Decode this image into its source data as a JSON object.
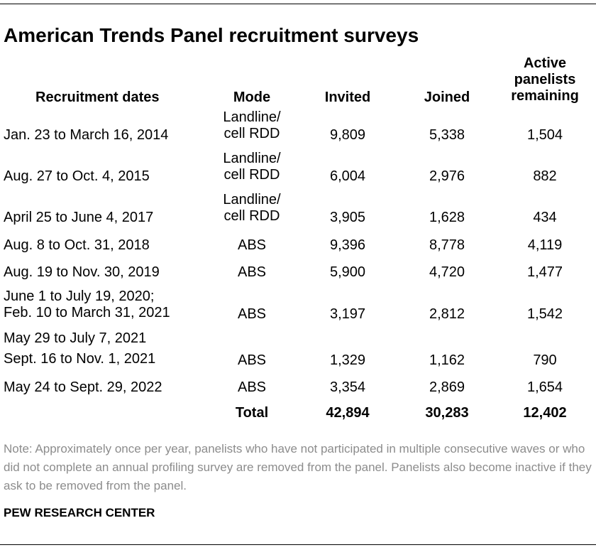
{
  "title": "American Trends Panel recruitment surveys",
  "headers": {
    "dates": "Recruitment dates",
    "mode": "Mode",
    "invited": "Invited",
    "joined": "Joined",
    "active": [
      "Active",
      "panelists",
      "remaining"
    ]
  },
  "rows": [
    {
      "dates": [
        "Jan. 23 to March 16, 2014"
      ],
      "mode": [
        "Landline/",
        "cell RDD"
      ],
      "invited": "9,809",
      "joined": "5,338",
      "active": "1,504"
    },
    {
      "dates": [
        "Aug. 27 to Oct. 4, 2015"
      ],
      "mode": [
        "Landline/",
        "cell RDD"
      ],
      "invited": "6,004",
      "joined": "2,976",
      "active": "882"
    },
    {
      "dates": [
        "April 25 to June 4, 2017"
      ],
      "mode": [
        "Landline/",
        "cell RDD"
      ],
      "invited": "3,905",
      "joined": "1,628",
      "active": "434"
    },
    {
      "dates": [
        "Aug. 8 to Oct. 31, 2018"
      ],
      "mode": [
        "ABS"
      ],
      "invited": "9,396",
      "joined": "8,778",
      "active": "4,119"
    },
    {
      "dates": [
        "Aug. 19 to Nov. 30, 2019"
      ],
      "mode": [
        "ABS"
      ],
      "invited": "5,900",
      "joined": "4,720",
      "active": "1,477"
    },
    {
      "dates": [
        "June 1 to July 19, 2020;",
        "Feb. 10 to March 31, 2021"
      ],
      "mode": [
        "ABS"
      ],
      "invited": "3,197",
      "joined": "2,812",
      "active": "1,542"
    },
    {
      "dates": [
        "May 29 to July 7, 2021",
        "Sept. 16 to Nov. 1, 2021"
      ],
      "mode": [
        "ABS"
      ],
      "invited": "1,329",
      "joined": "1,162",
      "active": "790"
    },
    {
      "dates": [
        "May 24 to Sept. 29, 2022"
      ],
      "mode": [
        "ABS"
      ],
      "invited": "3,354",
      "joined": "2,869",
      "active": "1,654"
    }
  ],
  "total": {
    "label": "Total",
    "invited": "42,894",
    "joined": "30,283",
    "active": "12,402"
  },
  "note": "Note: Approximately once per year, panelists who have not participated in multiple consecutive waves or who did not complete an annual profiling survey are removed from the panel. Panelists also become inactive if they ask to be removed from the panel.",
  "source": "PEW RESEARCH CENTER"
}
